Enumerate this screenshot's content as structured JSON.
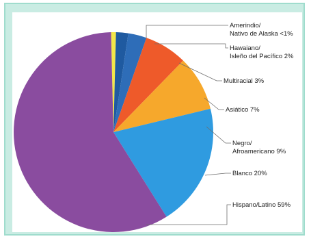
{
  "chart_data": {
    "type": "pie",
    "title": "",
    "unit": "%",
    "slices": [
      {
        "label_lines": [
          "Amerindio/",
          "Nativo de Alaska <1%"
        ],
        "value": 0.8,
        "color": "#f2e64a"
      },
      {
        "label_lines": [
          "Hawaiano/",
          "Isleño del Pacífico 2%"
        ],
        "value": 2,
        "color": "#1f5aa0"
      },
      {
        "label_lines": [
          "Multiracial 3%"
        ],
        "value": 3,
        "color": "#2e6db8"
      },
      {
        "label_lines": [
          "Asiático 7%"
        ],
        "value": 7,
        "color": "#ee5a2a"
      },
      {
        "label_lines": [
          "Negro/",
          "Afroamericano 9%"
        ],
        "value": 9,
        "color": "#f6a82c"
      },
      {
        "label_lines": [
          "Blanco 20%"
        ],
        "value": 20,
        "color": "#2f9be0"
      },
      {
        "label_lines": [
          "Hispano/Latino 59%"
        ],
        "value": 59,
        "color": "#8a4c9f"
      }
    ],
    "legend": "leader-line labels, right"
  }
}
